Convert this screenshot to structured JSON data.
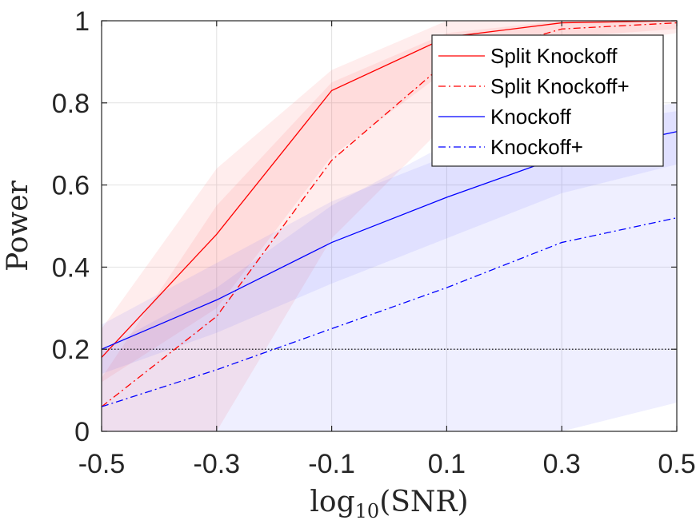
{
  "chart_data": {
    "type": "line",
    "title": "",
    "xlabel_main": "log",
    "xlabel_sub": "10",
    "xlabel_rest": "(SNR)",
    "ylabel": "Power",
    "x": [
      -0.5,
      -0.3,
      -0.1,
      0.1,
      0.3,
      0.5
    ],
    "x_tick_labels": [
      "-0.5",
      "-0.3",
      "-0.1",
      "0.1",
      "0.3",
      "0.5"
    ],
    "y_tick_values": [
      0,
      0.2,
      0.4,
      0.6,
      0.8,
      1
    ],
    "y_tick_labels": [
      "0",
      "0.2",
      "0.4",
      "0.6",
      "0.8",
      "1"
    ],
    "xlim": [
      -0.5,
      0.5
    ],
    "ylim": [
      0,
      1
    ],
    "grid": true,
    "legend_position": "top-right",
    "reference_line": {
      "y": 0.2,
      "style": "dotted",
      "color": "#000000"
    },
    "series": [
      {
        "name": "Split Knockoff",
        "color": "#ff0000",
        "style": "solid",
        "values": [
          0.18,
          0.48,
          0.83,
          0.96,
          0.995,
          1.0
        ],
        "band_lower": [
          0.12,
          0.3,
          0.67,
          0.88,
          0.96,
          0.98
        ],
        "band_upper": [
          0.25,
          0.64,
          0.88,
          1.0,
          1.0,
          1.0
        ]
      },
      {
        "name": "Split Knockoff+",
        "color": "#ff0000",
        "style": "dashdot",
        "values": [
          0.06,
          0.28,
          0.66,
          0.9,
          0.98,
          0.995
        ],
        "band_lower": [
          0.0,
          0.0,
          0.47,
          0.75,
          0.93,
          0.97
        ],
        "band_upper": [
          0.13,
          0.55,
          0.85,
          0.97,
          1.0,
          1.0
        ]
      },
      {
        "name": "Knockoff",
        "color": "#0000ff",
        "style": "solid",
        "values": [
          0.2,
          0.32,
          0.46,
          0.57,
          0.67,
          0.73
        ],
        "band_lower": [
          0.14,
          0.24,
          0.36,
          0.47,
          0.58,
          0.65
        ],
        "band_upper": [
          0.26,
          0.41,
          0.56,
          0.67,
          0.76,
          0.8
        ]
      },
      {
        "name": "Knockoff+",
        "color": "#0000ff",
        "style": "dashdot",
        "values": [
          0.06,
          0.15,
          0.25,
          0.35,
          0.46,
          0.52
        ],
        "band_lower": [
          0.0,
          0.0,
          0.0,
          0.0,
          0.0,
          0.07
        ],
        "band_upper": [
          0.2,
          0.35,
          0.55,
          0.7,
          0.74,
          0.78
        ]
      }
    ]
  }
}
